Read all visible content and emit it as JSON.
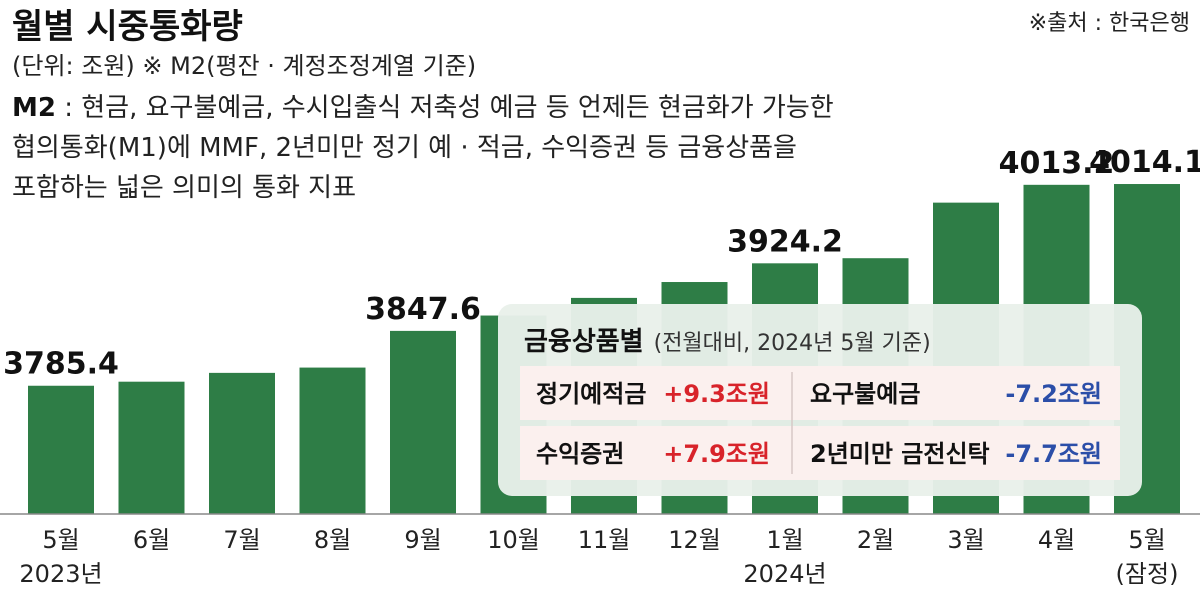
{
  "header": {
    "title": "월별 시중통화량",
    "subtitle": "(단위: 조원)  ※ M2(평잔 · 계정조정계열 기준)",
    "source": "※출처 : 한국은행"
  },
  "description": {
    "term": "M2",
    "line1": " : 현금, 요구불예금, 수시입출식 저축성 예금 등 언제든 현금화가 가능한",
    "line2": "협의통화(M1)에 MMF,  2년미만 정기 예 · 적금, 수익증권 등 금융상품을",
    "line3": "포함하는 넓은 의미의 통화 지표"
  },
  "chart_data": {
    "type": "bar",
    "title": "월별 시중통화량",
    "unit": "조원",
    "categories": [
      "5월",
      "6월",
      "7월",
      "8월",
      "9월",
      "10월",
      "11월",
      "12월",
      "1월",
      "2월",
      "3월",
      "4월",
      "5월"
    ],
    "year_labels": [
      "2023년",
      "",
      "",
      "",
      "",
      "",
      "",
      "",
      "2024년",
      "",
      "",
      "",
      "(잠정)"
    ],
    "values": [
      3785.4,
      3790.0,
      3800.0,
      3806.0,
      3847.6,
      3865.0,
      3885.0,
      3903.0,
      3924.2,
      3930.0,
      3993.0,
      4013.2,
      4014.1
    ],
    "labeled_values": [
      "3785.4",
      "",
      "",
      "",
      "3847.6",
      "",
      "",
      "",
      "3924.2",
      "",
      "",
      "4013.2",
      "4014.1"
    ],
    "ylim": [
      3640,
      4030
    ],
    "bar_color": "#2e7d46"
  },
  "panel": {
    "title": "금융상품별",
    "subtitle": "(전월대비, 2024년 5월 기준)",
    "rows": [
      [
        {
          "name": "정기예적금",
          "value": "+9.3조원",
          "sign": "pos"
        },
        {
          "name": "요구불예금",
          "value": "-7.2조원",
          "sign": "neg"
        }
      ],
      [
        {
          "name": "수익증권",
          "value": "+7.9조원",
          "sign": "pos"
        },
        {
          "name": "2년미만 금전신탁",
          "value": "-7.7조원",
          "sign": "neg"
        }
      ]
    ],
    "colors": {
      "positive": "#d8232a",
      "negative": "#2b4ea8"
    }
  }
}
